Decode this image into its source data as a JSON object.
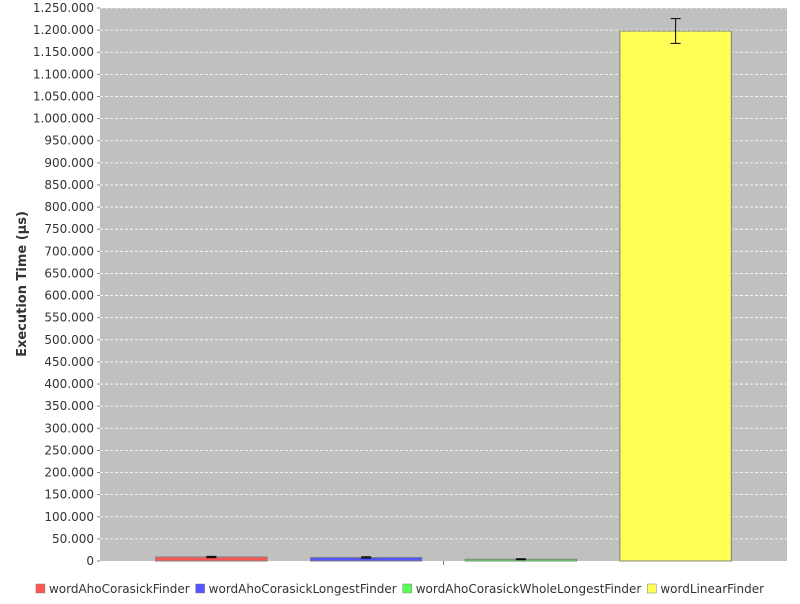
{
  "chart_data": {
    "type": "bar",
    "title": "",
    "xlabel": "",
    "ylabel": "Execution Time (µs)",
    "ylim": [
      0,
      1250000
    ],
    "ytick_step": 50000,
    "grid": true,
    "legend_position": "bottom",
    "categories": [
      ""
    ],
    "series": [
      {
        "name": "wordAhoCorasickFinder",
        "color": "#ff5555",
        "values": [
          9000
        ],
        "error": [
          1500
        ]
      },
      {
        "name": "wordAhoCorasickLongestFinder",
        "color": "#5555ff",
        "values": [
          8000
        ],
        "error": [
          1500
        ]
      },
      {
        "name": "wordAhoCorasickWholeLongestFinder",
        "color": "#55ff55",
        "values": [
          4000
        ],
        "error": [
          1000
        ]
      },
      {
        "name": "wordLinearFinder",
        "color": "#ffff55",
        "values": [
          1198000
        ],
        "error": [
          28000
        ]
      }
    ],
    "colors": {
      "plot_background": "#c0c0c0",
      "gridline": "#ffffff",
      "bar_outline": "#808080"
    }
  }
}
